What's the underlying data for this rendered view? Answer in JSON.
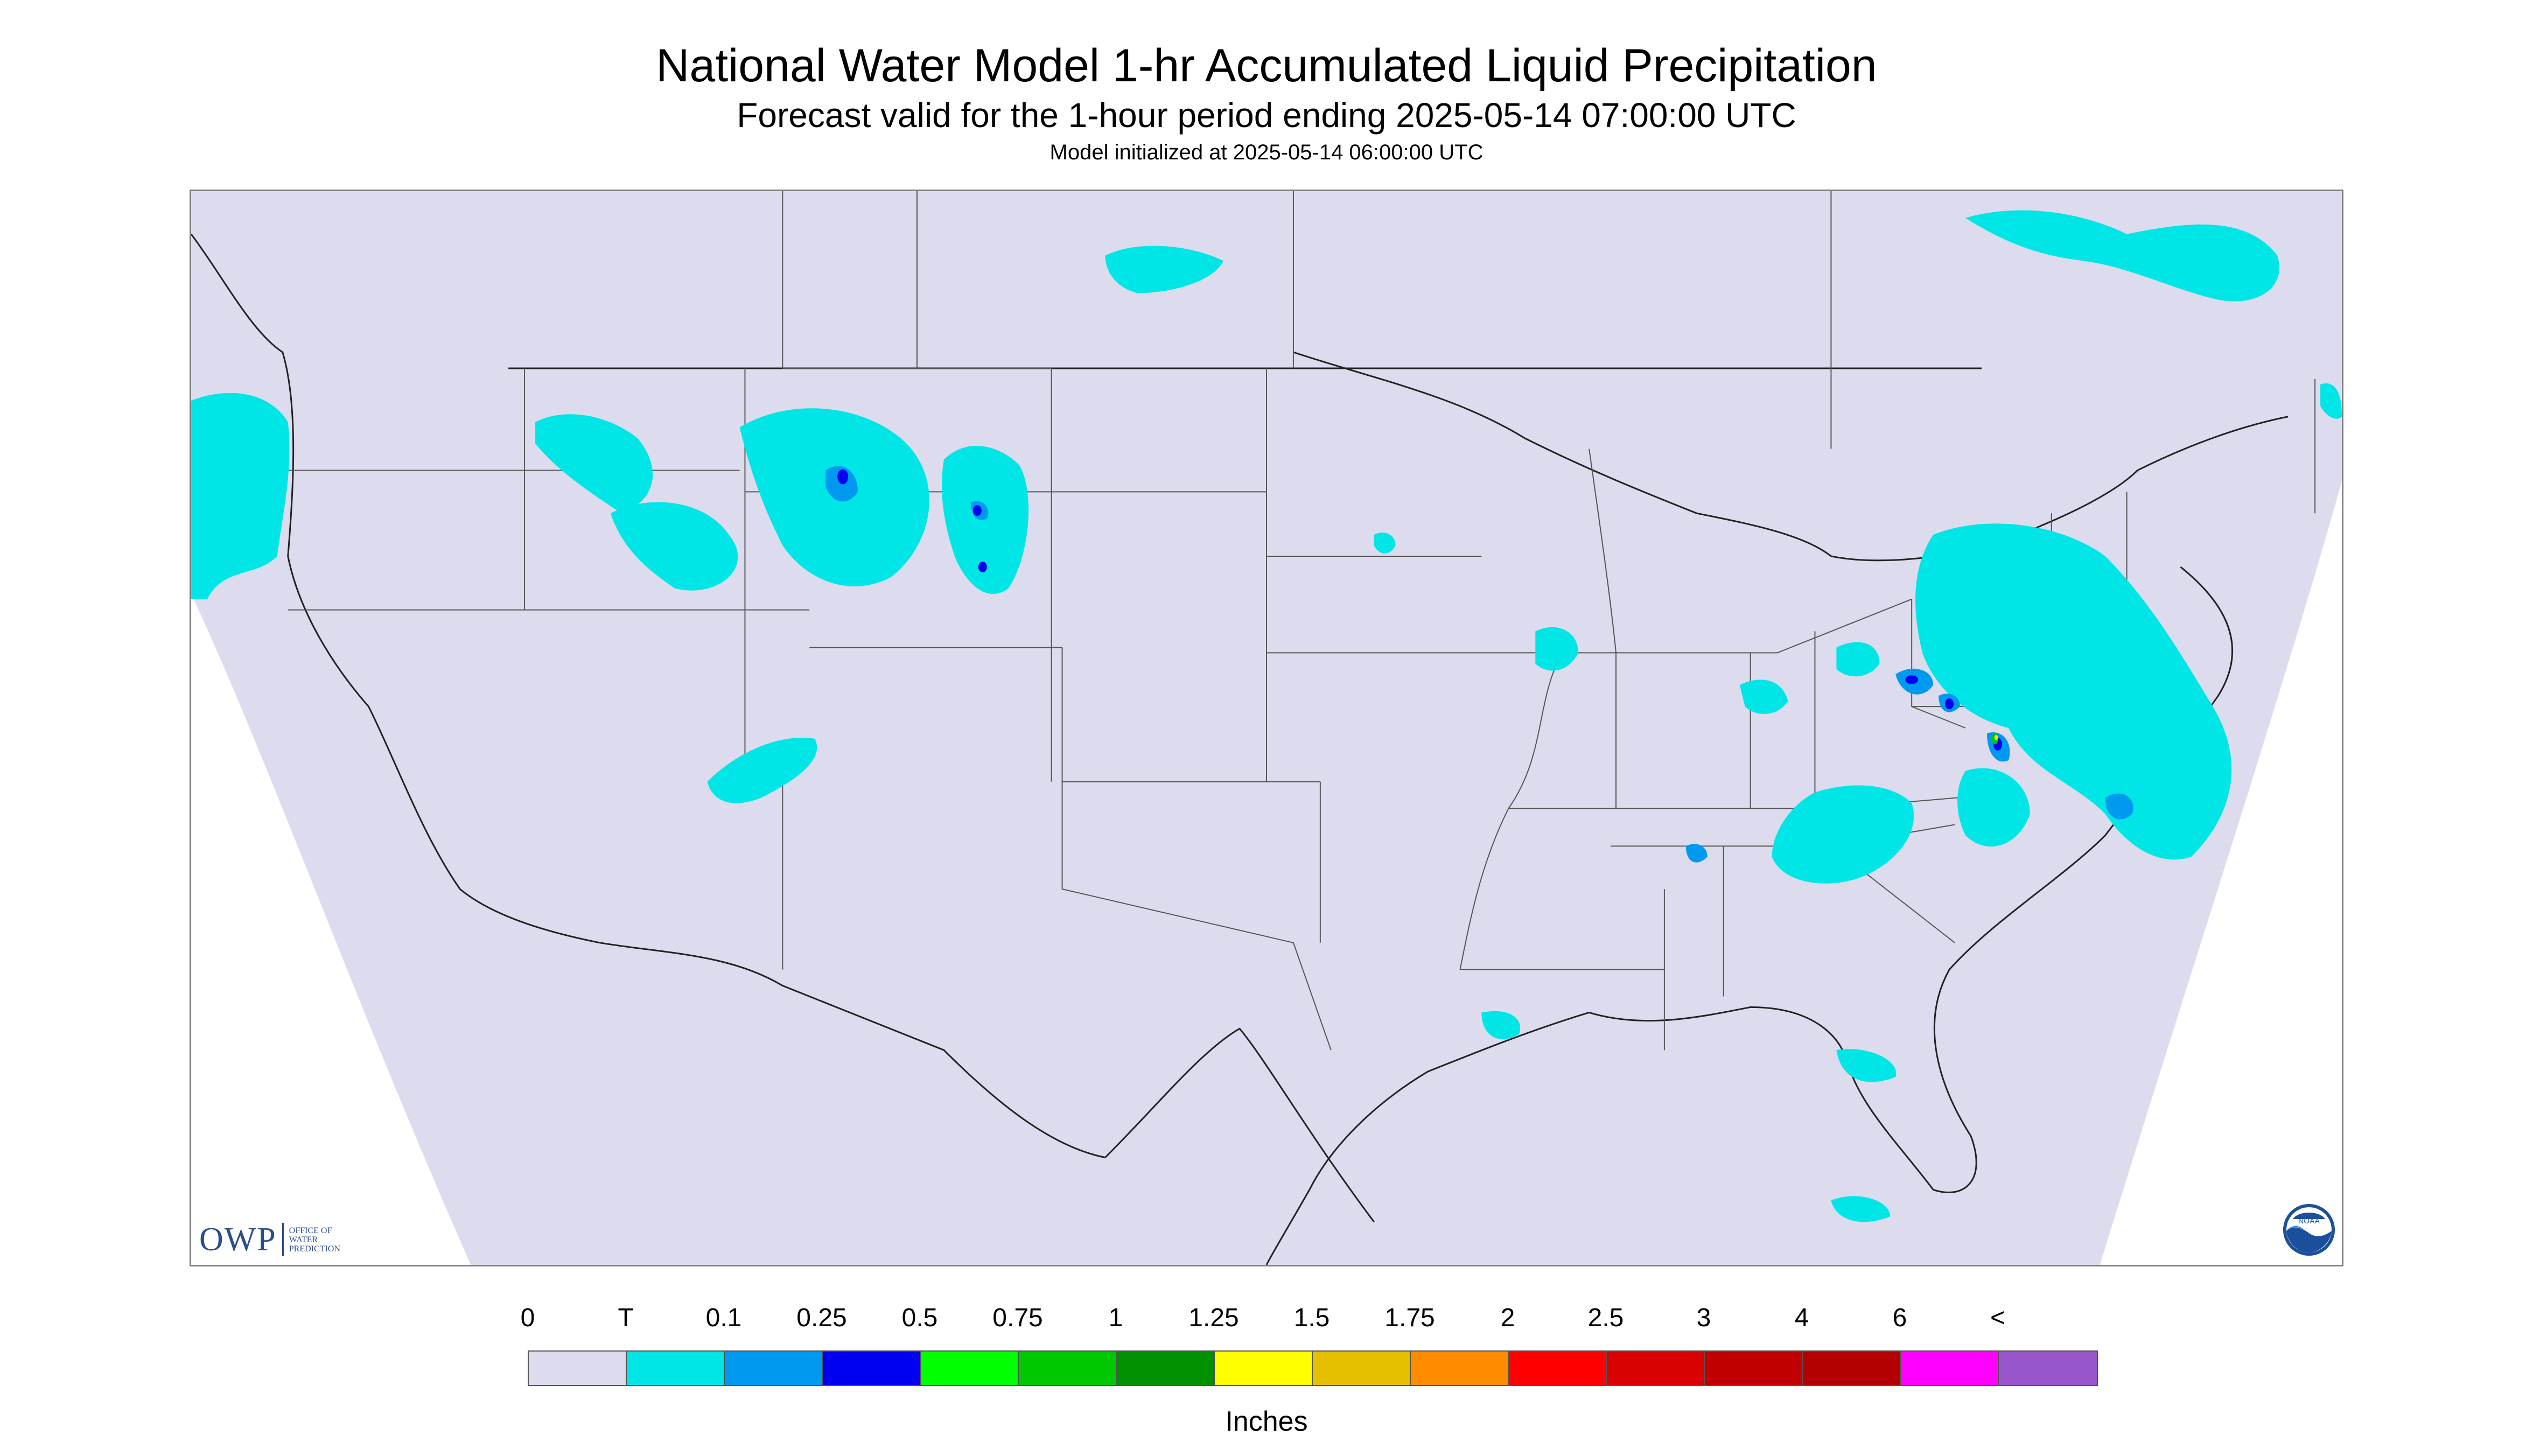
{
  "title": "National Water Model 1-hr Accumulated Liquid Precipitation",
  "subtitle": "Forecast valid for the 1-hour period ending 2025-05-14 07:00:00 UTC",
  "init": "Model initialized at 2025-05-14 06:00:00 UTC",
  "logos": {
    "owp_main": "OWP",
    "owp_sub_1": "OFFICE OF",
    "owp_sub_2": "WATER",
    "owp_sub_3": "PREDICTION",
    "noaa": "NOAA"
  },
  "colors": {
    "background_zero": "#dcdcee",
    "state_lines": "#333333",
    "trace": "#00e6e6",
    "light": "#0099f0",
    "moderate": "#0000f0"
  },
  "legend": {
    "labels": [
      "0",
      "T",
      "0.1",
      "0.25",
      "0.5",
      "0.75",
      "1",
      "1.25",
      "1.5",
      "1.75",
      "2",
      "2.5",
      "3",
      "4",
      "6",
      "<"
    ],
    "colors": [
      "#dcdcee",
      "#00e6e6",
      "#0099f0",
      "#0000f0",
      "#00ff00",
      "#00c800",
      "#009000",
      "#ffff00",
      "#e6c000",
      "#ff8c00",
      "#ff0000",
      "#d80000",
      "#c00000",
      "#b40000",
      "#ff00ff",
      "#9955cc"
    ],
    "units": "Inches"
  }
}
